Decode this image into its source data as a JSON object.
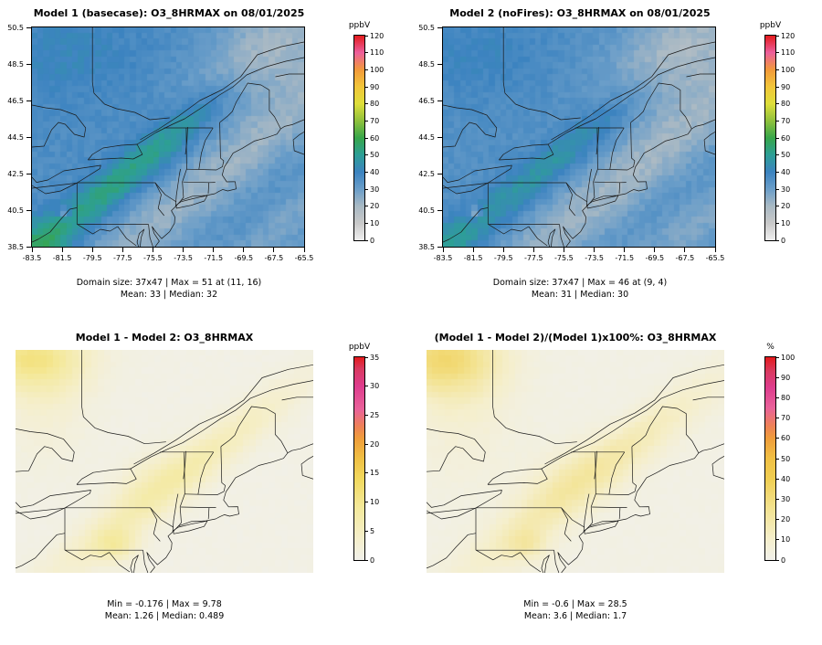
{
  "chart_data": [
    {
      "type": "heatmap",
      "title": "Model 1 (basecase): O3_8HRMAX on 08/01/2025",
      "units": "ppbV",
      "x_range": [
        -83.5,
        -65.5
      ],
      "y_range": [
        38.5,
        50.5
      ],
      "x_ticks": [
        "-83.5",
        "-81.5",
        "-79.5",
        "-77.5",
        "-75.5",
        "-73.5",
        "-71.5",
        "-69.5",
        "-67.5",
        "-65.5"
      ],
      "y_ticks": [
        "50.5",
        "48.5",
        "46.5",
        "44.5",
        "42.5",
        "40.5",
        "38.5"
      ],
      "colorbar": {
        "label": "ppbV",
        "min": 0,
        "max": 120,
        "ticks": [
          0,
          10,
          20,
          30,
          40,
          50,
          60,
          70,
          80,
          90,
          100,
          110,
          120
        ],
        "stops": [
          [
            0,
            "#efefef"
          ],
          [
            10,
            "#c9c9c9"
          ],
          [
            20,
            "#a9b9c4"
          ],
          [
            30,
            "#6b9ec9"
          ],
          [
            40,
            "#3c83c0"
          ],
          [
            50,
            "#2d9f96"
          ],
          [
            60,
            "#37a64a"
          ],
          [
            70,
            "#8fc13c"
          ],
          [
            80,
            "#dede3a"
          ],
          [
            90,
            "#f2c63a"
          ],
          [
            100,
            "#f29a3a"
          ],
          [
            110,
            "#ec5f9d"
          ],
          [
            120,
            "#e31a1c"
          ]
        ]
      },
      "stats": {
        "domain_size": "37x47",
        "max": 51,
        "max_at": "(11, 16)",
        "mean": 33,
        "median": 32
      },
      "stats_line1": "Domain size: 37x47 | Max = 51 at (11, 16)",
      "stats_line2": "Mean: 33 |  Median: 32",
      "grid": {
        "cols": 47,
        "rows": 37
      },
      "field": {
        "base": 36,
        "noise": 2.2,
        "clamp": [
          0,
          120
        ],
        "blobs": [
          {
            "x": 0.68,
            "y": 0.68,
            "sx": 0.75,
            "sy": 0.09,
            "angle": -45,
            "amp": -14
          },
          {
            "x": 0.99,
            "y": 0.84,
            "sx": 0.5,
            "sy": 0.07,
            "angle": -45,
            "amp": -8
          },
          {
            "x": 0.25,
            "y": 0.78,
            "sx": 0.28,
            "sy": 0.055,
            "angle": -45,
            "amp": 16
          },
          {
            "x": 0.55,
            "y": 0.46,
            "sx": 0.22,
            "sy": 0.05,
            "angle": -45,
            "amp": 8
          },
          {
            "x": 0.03,
            "y": 0.97,
            "sx": 0.08,
            "sy": 0.08,
            "angle": 0,
            "amp": 12
          },
          {
            "x": 0.88,
            "y": 0.1,
            "sx": 0.22,
            "sy": 0.13,
            "angle": -45,
            "amp": -16
          },
          {
            "x": 0.12,
            "y": 0.12,
            "sx": 0.2,
            "sy": 0.15,
            "angle": 0,
            "amp": 5
          },
          {
            "x": 0.12,
            "y": 0.845,
            "sx": 0.016,
            "sy": 0.016,
            "angle": 0,
            "amp": -20
          }
        ]
      }
    },
    {
      "type": "heatmap",
      "title": "Model 2 (noFires): O3_8HRMAX on 08/01/2025",
      "units": "ppbV",
      "x_range": [
        -83.5,
        -65.5
      ],
      "y_range": [
        38.5,
        50.5
      ],
      "x_ticks": [
        "-83.5",
        "-81.5",
        "-79.5",
        "-77.5",
        "-75.5",
        "-73.5",
        "-71.5",
        "-69.5",
        "-67.5",
        "-65.5"
      ],
      "y_ticks": [
        "50.5",
        "48.5",
        "46.5",
        "44.5",
        "42.5",
        "40.5",
        "38.5"
      ],
      "colorbar": {
        "label": "ppbV",
        "min": 0,
        "max": 120,
        "ticks": [
          0,
          10,
          20,
          30,
          40,
          50,
          60,
          70,
          80,
          90,
          100,
          110,
          120
        ],
        "stops": [
          [
            0,
            "#efefef"
          ],
          [
            10,
            "#c9c9c9"
          ],
          [
            20,
            "#a9b9c4"
          ],
          [
            30,
            "#6b9ec9"
          ],
          [
            40,
            "#3c83c0"
          ],
          [
            50,
            "#2d9f96"
          ],
          [
            60,
            "#37a64a"
          ],
          [
            70,
            "#8fc13c"
          ],
          [
            80,
            "#dede3a"
          ],
          [
            90,
            "#f2c63a"
          ],
          [
            100,
            "#f29a3a"
          ],
          [
            110,
            "#ec5f9d"
          ],
          [
            120,
            "#e31a1c"
          ]
        ]
      },
      "stats": {
        "domain_size": "37x47",
        "max": 46,
        "max_at": "(9, 4)",
        "mean": 31,
        "median": 30
      },
      "stats_line1": "Domain size: 37x47 | Max = 46 at (9, 4)",
      "stats_line2": "Mean: 31 |  Median: 30",
      "grid": {
        "cols": 47,
        "rows": 37
      },
      "field": {
        "base": 35,
        "noise": 2.2,
        "clamp": [
          0,
          120
        ],
        "blobs": [
          {
            "x": 0.68,
            "y": 0.68,
            "sx": 0.75,
            "sy": 0.09,
            "angle": -45,
            "amp": -14
          },
          {
            "x": 0.99,
            "y": 0.84,
            "sx": 0.5,
            "sy": 0.07,
            "angle": -45,
            "amp": -8
          },
          {
            "x": 0.25,
            "y": 0.78,
            "sx": 0.28,
            "sy": 0.055,
            "angle": -45,
            "amp": 11
          },
          {
            "x": 0.55,
            "y": 0.46,
            "sx": 0.22,
            "sy": 0.05,
            "angle": -45,
            "amp": 6
          },
          {
            "x": 0.03,
            "y": 0.97,
            "sx": 0.08,
            "sy": 0.08,
            "angle": 0,
            "amp": 8
          },
          {
            "x": 0.88,
            "y": 0.1,
            "sx": 0.22,
            "sy": 0.13,
            "angle": -45,
            "amp": -16
          },
          {
            "x": 0.12,
            "y": 0.12,
            "sx": 0.2,
            "sy": 0.15,
            "angle": 0,
            "amp": 5
          },
          {
            "x": 0.12,
            "y": 0.845,
            "sx": 0.016,
            "sy": 0.016,
            "angle": 0,
            "amp": -20
          }
        ]
      }
    },
    {
      "type": "heatmap",
      "title": "Model 1 - Model 2: O3_8HRMAX",
      "units": "ppbV",
      "x_range": [
        -83.5,
        -65.5
      ],
      "y_range": [
        38.5,
        50.5
      ],
      "colorbar": {
        "label": "ppbV",
        "min": 0,
        "max": 35,
        "ticks": [
          0,
          5,
          10,
          15,
          20,
          25,
          30,
          35
        ],
        "stops": [
          [
            0,
            "#f1f0ea"
          ],
          [
            3.5,
            "#f5efcd"
          ],
          [
            9,
            "#f4e99c"
          ],
          [
            14,
            "#f2d95e"
          ],
          [
            17.5,
            "#f0c044"
          ],
          [
            21,
            "#ef9d3b"
          ],
          [
            23,
            "#ee8256"
          ],
          [
            26,
            "#e9629a"
          ],
          [
            30,
            "#de3d8e"
          ],
          [
            33,
            "#d93a60"
          ],
          [
            35,
            "#e31a1c"
          ]
        ]
      },
      "stats": {
        "min": -0.176,
        "max": 9.78,
        "mean": 1.26,
        "median": 0.489
      },
      "stats_line1": "Min = -0.176 | Max = 9.78",
      "stats_line2": "Mean: 1.26 |  Median: 0.489",
      "grid": {
        "cols": 47,
        "rows": 37
      },
      "field": {
        "base": 0.6,
        "noise": 0.25,
        "clamp": [
          0,
          35
        ],
        "blobs": [
          {
            "x": 0.05,
            "y": 0.04,
            "sx": 0.13,
            "sy": 0.1,
            "angle": 0,
            "amp": 8.6
          },
          {
            "x": 0.1,
            "y": 0.16,
            "sx": 0.1,
            "sy": 0.22,
            "angle": 0,
            "amp": 2.5
          },
          {
            "x": 0.42,
            "y": 0.72,
            "sx": 0.33,
            "sy": 0.06,
            "angle": -45,
            "amp": 4.5
          },
          {
            "x": 0.7,
            "y": 0.4,
            "sx": 0.3,
            "sy": 0.055,
            "angle": -45,
            "amp": 3.2
          },
          {
            "x": 0.34,
            "y": 0.88,
            "sx": 0.05,
            "sy": 0.05,
            "angle": 0,
            "amp": 5.5
          },
          {
            "x": 0.45,
            "y": 0.57,
            "sx": 0.12,
            "sy": 0.07,
            "angle": -45,
            "amp": 2.2
          }
        ]
      }
    },
    {
      "type": "heatmap",
      "title": "(Model 1 - Model 2)/(Model 1)x100%: O3_8HRMAX",
      "units": "%",
      "x_range": [
        -83.5,
        -65.5
      ],
      "y_range": [
        38.5,
        50.5
      ],
      "colorbar": {
        "label": "%",
        "min": 0,
        "max": 100,
        "ticks": [
          0,
          10,
          20,
          30,
          40,
          50,
          60,
          70,
          80,
          90,
          100
        ],
        "stops": [
          [
            0,
            "#f1f0ea"
          ],
          [
            10,
            "#f5efcd"
          ],
          [
            25,
            "#f3e392"
          ],
          [
            40,
            "#f0ce52"
          ],
          [
            50,
            "#f0c044"
          ],
          [
            60,
            "#ef9d3b"
          ],
          [
            66,
            "#ee8256"
          ],
          [
            75,
            "#e9629a"
          ],
          [
            85,
            "#de3d8e"
          ],
          [
            93,
            "#d93a60"
          ],
          [
            100,
            "#e31a1c"
          ]
        ]
      },
      "stats": {
        "min": -0.6,
        "max": 28.5,
        "mean": 3.6,
        "median": 1.7
      },
      "stats_line1": "Min = -0.6 | Max = 28.5",
      "stats_line2": "Mean: 3.6 |  Median: 1.7",
      "grid": {
        "cols": 47,
        "rows": 37
      },
      "field": {
        "base": 2,
        "noise": 0.7,
        "clamp": [
          0,
          100
        ],
        "blobs": [
          {
            "x": 0.05,
            "y": 0.04,
            "sx": 0.13,
            "sy": 0.11,
            "angle": 0,
            "amp": 26
          },
          {
            "x": 0.12,
            "y": 0.18,
            "sx": 0.12,
            "sy": 0.25,
            "angle": 0,
            "amp": 7
          },
          {
            "x": 0.44,
            "y": 0.7,
            "sx": 0.35,
            "sy": 0.07,
            "angle": -45,
            "amp": 12
          },
          {
            "x": 0.72,
            "y": 0.38,
            "sx": 0.32,
            "sy": 0.06,
            "angle": -45,
            "amp": 8
          },
          {
            "x": 0.34,
            "y": 0.88,
            "sx": 0.05,
            "sy": 0.05,
            "angle": 0,
            "amp": 11
          },
          {
            "x": 0.46,
            "y": 0.56,
            "sx": 0.14,
            "sy": 0.08,
            "angle": -45,
            "amp": 6
          }
        ]
      }
    }
  ]
}
